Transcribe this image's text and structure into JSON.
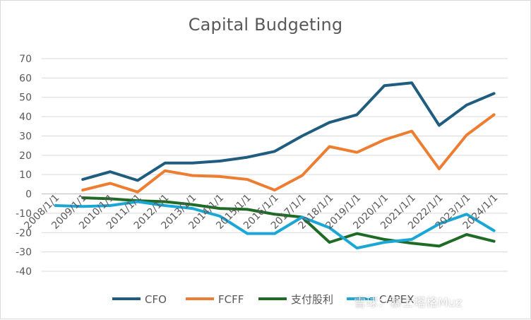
{
  "chart_data": {
    "type": "line",
    "title": "Capital Budgeting",
    "xlabel": "",
    "ylabel": "",
    "categories": [
      "2008/1/1",
      "2009/1/1",
      "2010/1/1",
      "2011/1/1",
      "2012/1/1",
      "2013/1/1",
      "2014/1/1",
      "2015/1/1",
      "2016/1/1",
      "2017/1/1",
      "2018/1/1",
      "2019/1/1",
      "2020/1/1",
      "2021/1/1",
      "2022/1/1",
      "2023/1/1",
      "2024/1/1"
    ],
    "ylim": [
      -40,
      70
    ],
    "yticks": [
      -40,
      -30,
      -20,
      -10,
      0,
      10,
      20,
      30,
      40,
      50,
      60,
      70
    ],
    "grid": true,
    "legend_position": "bottom",
    "series": [
      {
        "name": "CFO",
        "color": "#1f5c7e",
        "values": [
          null,
          7.5,
          11.5,
          7,
          16,
          16,
          17,
          19,
          22,
          30,
          37,
          41,
          56,
          57.5,
          35.5,
          46,
          52
        ]
      },
      {
        "name": "FCFF",
        "color": "#ed7d31",
        "values": [
          null,
          2,
          5.5,
          1,
          12,
          9.5,
          9,
          7.5,
          2,
          9.5,
          24.5,
          21.5,
          28,
          32.5,
          13,
          30.5,
          41
        ]
      },
      {
        "name": "支付股利",
        "color": "#1f6b26",
        "values": [
          null,
          -2,
          -2.5,
          -3.5,
          -4,
          -5.5,
          -7.5,
          -8,
          -10.5,
          -12,
          -25,
          -20.5,
          -23.5,
          -25.5,
          -27,
          -21,
          -24.5
        ]
      },
      {
        "name": "CAPEX",
        "color": "#1ba7d6",
        "values": [
          -6,
          -6.5,
          -6,
          -4,
          -6,
          -7.5,
          -11.5,
          -20.5,
          -20.5,
          -12,
          -17.5,
          -28,
          -25,
          -23.5,
          -15.5,
          -10.5,
          -19
        ]
      }
    ]
  },
  "watermark": "雪球：慕士塔格Muz"
}
